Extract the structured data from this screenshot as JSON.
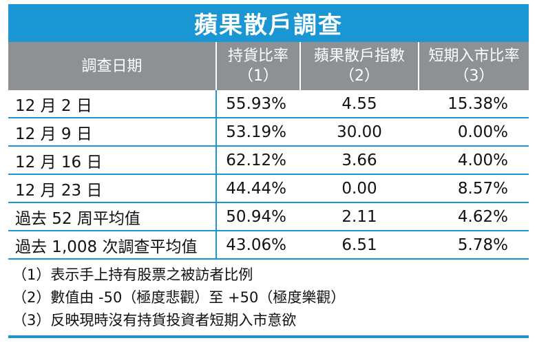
{
  "title": "蘋果散戶調查",
  "headers": [
    {
      "main": "調查日期",
      "sub": ""
    },
    {
      "main": "持貨比率",
      "sub": "（1）"
    },
    {
      "main": "蘋果散戶指數",
      "sub": "（2）"
    },
    {
      "main": "短期入市比率",
      "sub": "（3）"
    }
  ],
  "rows": [
    {
      "date": "12 月 2 日",
      "ratio": "55.93%",
      "index": "4.55",
      "entry": "15.38%"
    },
    {
      "date": "12 月 9 日",
      "ratio": "53.19%",
      "index": "30.00",
      "entry": "0.00%"
    },
    {
      "date": "12 月 16 日",
      "ratio": "62.12%",
      "index": "3.66",
      "entry": "4.00%"
    },
    {
      "date": "12 月 23 日",
      "ratio": "44.44%",
      "index": "0.00",
      "entry": "8.57%"
    },
    {
      "date": "過去 52 周平均值",
      "ratio": "50.94%",
      "index": "2.11",
      "entry": "4.62%"
    },
    {
      "date": "過去 1,008 次調查平均值",
      "ratio": "43.06%",
      "index": "6.51",
      "entry": "5.78%"
    }
  ],
  "notes": [
    "（1）表示手上持有股票之被訪者比例",
    "（2）數值由 -50（極度悲觀）至 +50（極度樂觀）",
    "（3）反映現時沒有持貨投資者短期入市意欲"
  ],
  "colors": {
    "accent": "#1b96d4",
    "header_bg": "#8e9194"
  }
}
